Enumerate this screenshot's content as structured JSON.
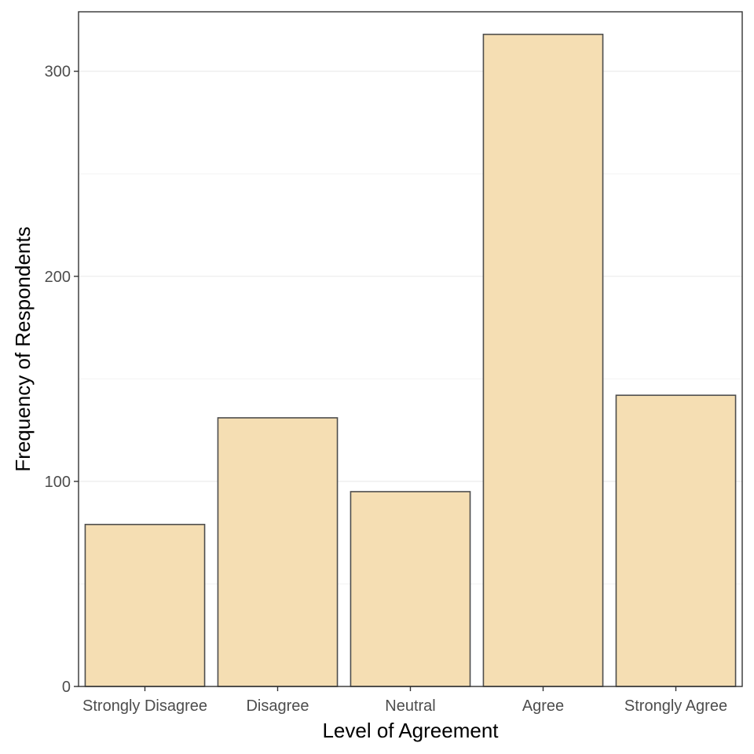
{
  "chart_data": {
    "type": "bar",
    "title": "",
    "xlabel": "Level of Agreement",
    "ylabel": "Frequency of Respondents",
    "categories": [
      "Strongly Disagree",
      "Disagree",
      "Neutral",
      "Agree",
      "Strongly Agree"
    ],
    "values": [
      79,
      131,
      95,
      318,
      142
    ],
    "ylim": [
      0,
      329
    ],
    "yticks": [
      0,
      100,
      200,
      300
    ],
    "ytick_labels": [
      "0",
      "100",
      "200",
      "300"
    ],
    "minor_gridlines": [
      50,
      150,
      250
    ],
    "grid": true,
    "legend": "none",
    "colors": {
      "bar_fill": "#f5deb3",
      "bar_stroke": "#4d4d4d",
      "panel_border": "#333333",
      "grid_major": "#ebebeb",
      "grid_minor": "#f3f3f3",
      "tick": "#333333"
    }
  }
}
